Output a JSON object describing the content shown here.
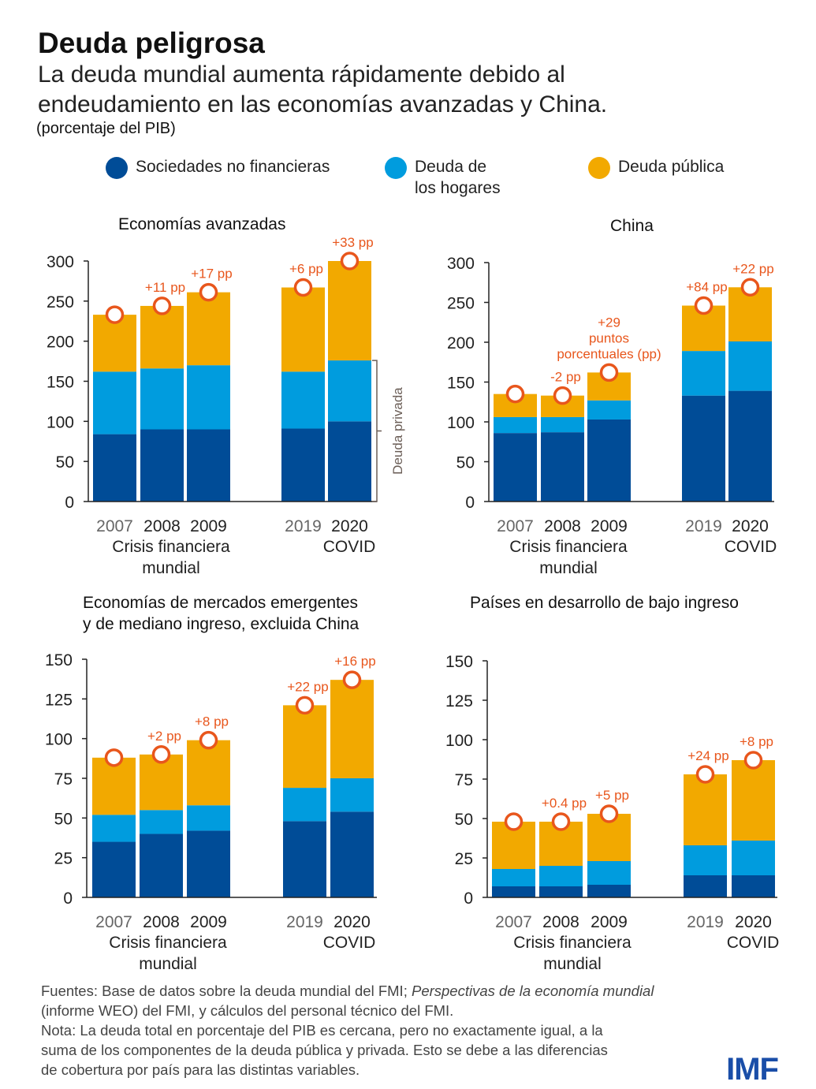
{
  "title": "Deuda peligrosa",
  "subtitle_1": "La deuda mundial aumenta rápidamente debido al",
  "subtitle_2": "endeudamiento en las economías avanzadas y China.",
  "unit": "(porcentaje del PIB)",
  "legend": [
    {
      "label": "Sociedades no financieras",
      "color": "#004c97"
    },
    {
      "label": "Deuda de",
      "label2": "los hogares",
      "color": "#009cde"
    },
    {
      "label": "Deuda pública",
      "color": "#f2a900"
    }
  ],
  "colors": {
    "marker": "#e8561c",
    "axis": "#222",
    "bracket": "#6b5e57"
  },
  "chart_data": [
    {
      "type": "bar",
      "stacked": true,
      "title": "Economías avanzadas",
      "ylim": [
        0,
        300
      ],
      "yticks": [
        0,
        50,
        100,
        150,
        200,
        250,
        300
      ],
      "categories": [
        "2007",
        "2008",
        "2009",
        "2019",
        "2020"
      ],
      "groups": [
        [
          "Crisis financiera",
          "mundial"
        ],
        [
          "COVID"
        ]
      ],
      "series": [
        {
          "name": "Sociedades no financieras",
          "values": [
            84,
            90,
            90,
            91,
            100
          ]
        },
        {
          "name": "Deuda de los hogares",
          "values": [
            78,
            76,
            80,
            71,
            76
          ]
        },
        {
          "name": "Deuda pública",
          "values": [
            71,
            78,
            91,
            105,
            124
          ]
        }
      ],
      "total_markers": [
        233,
        244,
        261,
        267,
        300
      ],
      "annotations": [
        "",
        "+11 pp",
        "+17 pp",
        "+6 pp",
        "+33 pp"
      ],
      "bracket_label": "Deuda privada"
    },
    {
      "type": "bar",
      "stacked": true,
      "title": "China",
      "ylim": [
        0,
        300
      ],
      "yticks": [
        0,
        50,
        100,
        150,
        200,
        250,
        300
      ],
      "categories": [
        "2007",
        "2008",
        "2009",
        "2019",
        "2020"
      ],
      "groups": [
        [
          "Crisis financiera",
          "mundial"
        ],
        [
          "COVID"
        ]
      ],
      "series": [
        {
          "name": "Sociedades no financieras",
          "values": [
            86,
            87,
            103,
            133,
            139
          ]
        },
        {
          "name": "Deuda de los hogares",
          "values": [
            20,
            19,
            24,
            56,
            62
          ]
        },
        {
          "name": "Deuda pública",
          "values": [
            29,
            27,
            35,
            57,
            68
          ]
        }
      ],
      "total_markers": [
        135,
        133,
        162,
        246,
        269
      ],
      "annotations": [
        "",
        "-2 pp",
        "+29\npuntos\nporcentuales (pp)",
        "+84 pp",
        "+22 pp"
      ]
    },
    {
      "type": "bar",
      "stacked": true,
      "title": "Economías de mercados emergentes",
      "title2": "y de mediano ingreso, excluida China",
      "ylim": [
        0,
        150
      ],
      "yticks": [
        0,
        25,
        50,
        75,
        100,
        125,
        150
      ],
      "categories": [
        "2007",
        "2008",
        "2009",
        "2019",
        "2020"
      ],
      "groups": [
        [
          "Crisis financiera",
          "mundial"
        ],
        [
          "COVID"
        ]
      ],
      "series": [
        {
          "name": "Sociedades no financieras",
          "values": [
            35,
            40,
            42,
            48,
            54
          ]
        },
        {
          "name": "Deuda de los hogares",
          "values": [
            17,
            15,
            16,
            21,
            21
          ]
        },
        {
          "name": "Deuda pública",
          "values": [
            36,
            35,
            41,
            52,
            62
          ]
        }
      ],
      "total_markers": [
        88,
        90,
        99,
        121,
        137
      ],
      "annotations": [
        "",
        "+2 pp",
        "+8 pp",
        "+22 pp",
        "+16 pp"
      ]
    },
    {
      "type": "bar",
      "stacked": true,
      "title": "Países en desarrollo de bajo ingreso",
      "ylim": [
        0,
        150
      ],
      "yticks": [
        0,
        25,
        50,
        75,
        100,
        125,
        150
      ],
      "categories": [
        "2007",
        "2008",
        "2009",
        "2019",
        "2020"
      ],
      "groups": [
        [
          "Crisis financiera",
          "mundial"
        ],
        [
          "COVID"
        ]
      ],
      "series": [
        {
          "name": "Sociedades no financieras",
          "values": [
            7,
            7,
            8,
            14,
            14
          ]
        },
        {
          "name": "Deuda de los hogares",
          "values": [
            11,
            13,
            15,
            19,
            22
          ]
        },
        {
          "name": "Deuda pública",
          "values": [
            30,
            28,
            30,
            45,
            51
          ]
        }
      ],
      "total_markers": [
        48,
        48,
        53,
        78,
        87
      ],
      "annotations": [
        "",
        "+0.4 pp",
        "+5 pp",
        "+24 pp",
        "+8 pp"
      ]
    }
  ],
  "sources": [
    "Fuentes: Base de datos sobre la deuda mundial del FMI; ",
    "Perspectivas de la economía mundial"
  ],
  "source_2": "(informe WEO) del FMI, y cálculos del personal técnico del FMI.",
  "note_1": "Nota: La deuda total en porcentaje del PIB es cercana, pero no exactamente igual, a la",
  "note_2": "suma de los componentes de la deuda pública y privada. Esto se debe a las diferencias",
  "note_3": "de cobertura por país para las distintas variables.",
  "logo": "IMF"
}
